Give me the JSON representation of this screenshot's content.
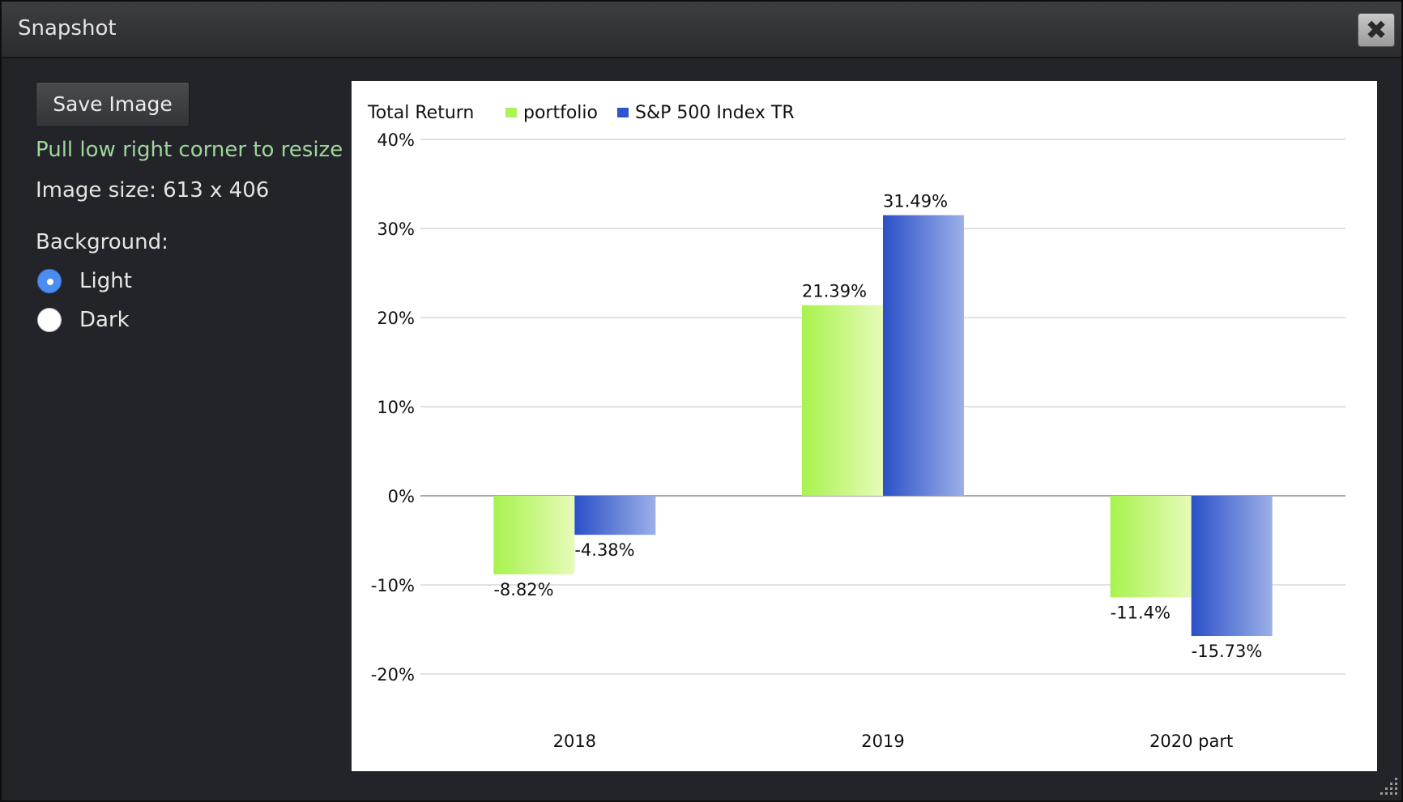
{
  "dialog": {
    "title": "Snapshot",
    "close_icon": "close-icon"
  },
  "sidebar": {
    "save_label": "Save Image",
    "hint": "Pull low right corner to resize",
    "image_size": "Image size: 613 x 406",
    "background_label": "Background:",
    "options": [
      {
        "label": "Light",
        "checked": true
      },
      {
        "label": "Dark",
        "checked": false
      }
    ]
  },
  "colors": {
    "portfolio": "#aef25a",
    "sp500": "#2e55cc",
    "grid": "#d8d8d8",
    "zero_line": "#a8a8a8"
  },
  "chart_data": {
    "type": "bar",
    "title": "Total Return",
    "categories": [
      "2018",
      "2019",
      "2020 part"
    ],
    "series": [
      {
        "name": "portfolio",
        "values": [
          -8.82,
          21.39,
          -11.4
        ],
        "labels": [
          "-8.82%",
          "21.39%",
          "-11.4%"
        ]
      },
      {
        "name": "S&P 500 Index TR",
        "values": [
          -4.38,
          31.49,
          -15.73
        ],
        "labels": [
          "-4.38%",
          "31.49%",
          "-15.73%"
        ]
      }
    ],
    "ylim": [
      -20,
      40
    ],
    "yticks": [
      40,
      30,
      20,
      10,
      0,
      -10,
      -20
    ],
    "ytick_labels": [
      "40%",
      "30%",
      "20%",
      "10%",
      "0%",
      "-10%",
      "-20%"
    ],
    "legend": "top-left",
    "grid": true
  }
}
